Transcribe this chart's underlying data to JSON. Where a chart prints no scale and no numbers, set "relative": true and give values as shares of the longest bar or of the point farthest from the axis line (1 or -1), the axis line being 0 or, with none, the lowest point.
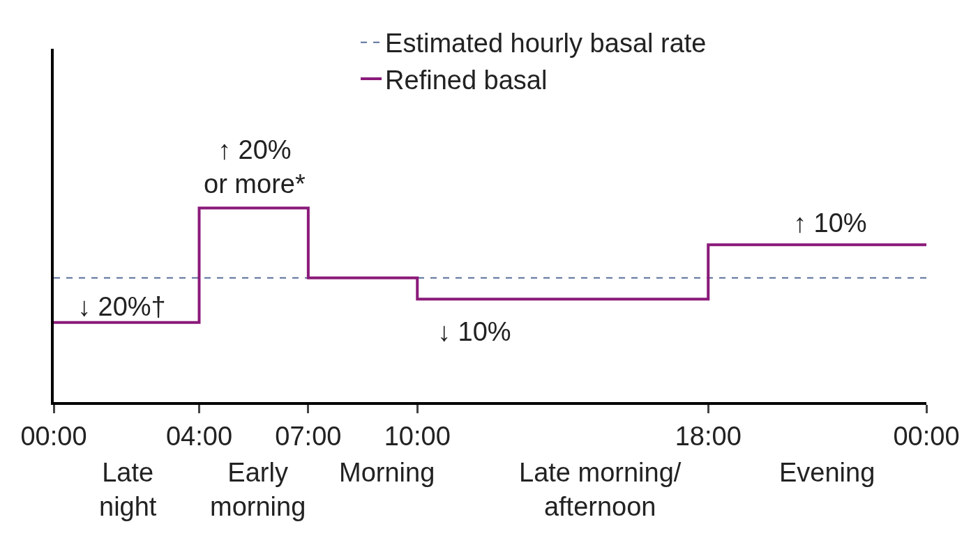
{
  "chart_data": {
    "type": "step",
    "relative": true,
    "xlim": [
      0,
      24
    ],
    "xticks": [
      {
        "value": 0,
        "label": "00:00"
      },
      {
        "value": 4,
        "label": "04:00"
      },
      {
        "value": 7,
        "label": "07:00"
      },
      {
        "value": 10,
        "label": "10:00"
      },
      {
        "value": 18,
        "label": "18:00"
      },
      {
        "value": 24,
        "label": "00:00"
      }
    ],
    "series": [
      {
        "name": "Estimated hourly basal rate",
        "type": "line",
        "color": "#5a6f9a",
        "line_style": "dashed",
        "x": [
          0,
          24
        ],
        "values": [
          0.64,
          0.64
        ]
      },
      {
        "name": "Refined basal",
        "color": "#8b1a7a",
        "line_style": "solid",
        "x": [
          0,
          4,
          7,
          10,
          18,
          24
        ],
        "values": [
          0.41,
          1,
          0.64,
          0.53,
          0.81,
          0.81
        ]
      }
    ],
    "annotations": [
      "↑ 20%\nor more*",
      "↓ 20%†",
      "↓ 10%",
      "↑ 10%",
      "Late\nnight",
      "Early\nmorning",
      "Morning",
      "Late morning/\nafternoon",
      "Evening"
    ],
    "legend": "top",
    "marker": "none"
  }
}
